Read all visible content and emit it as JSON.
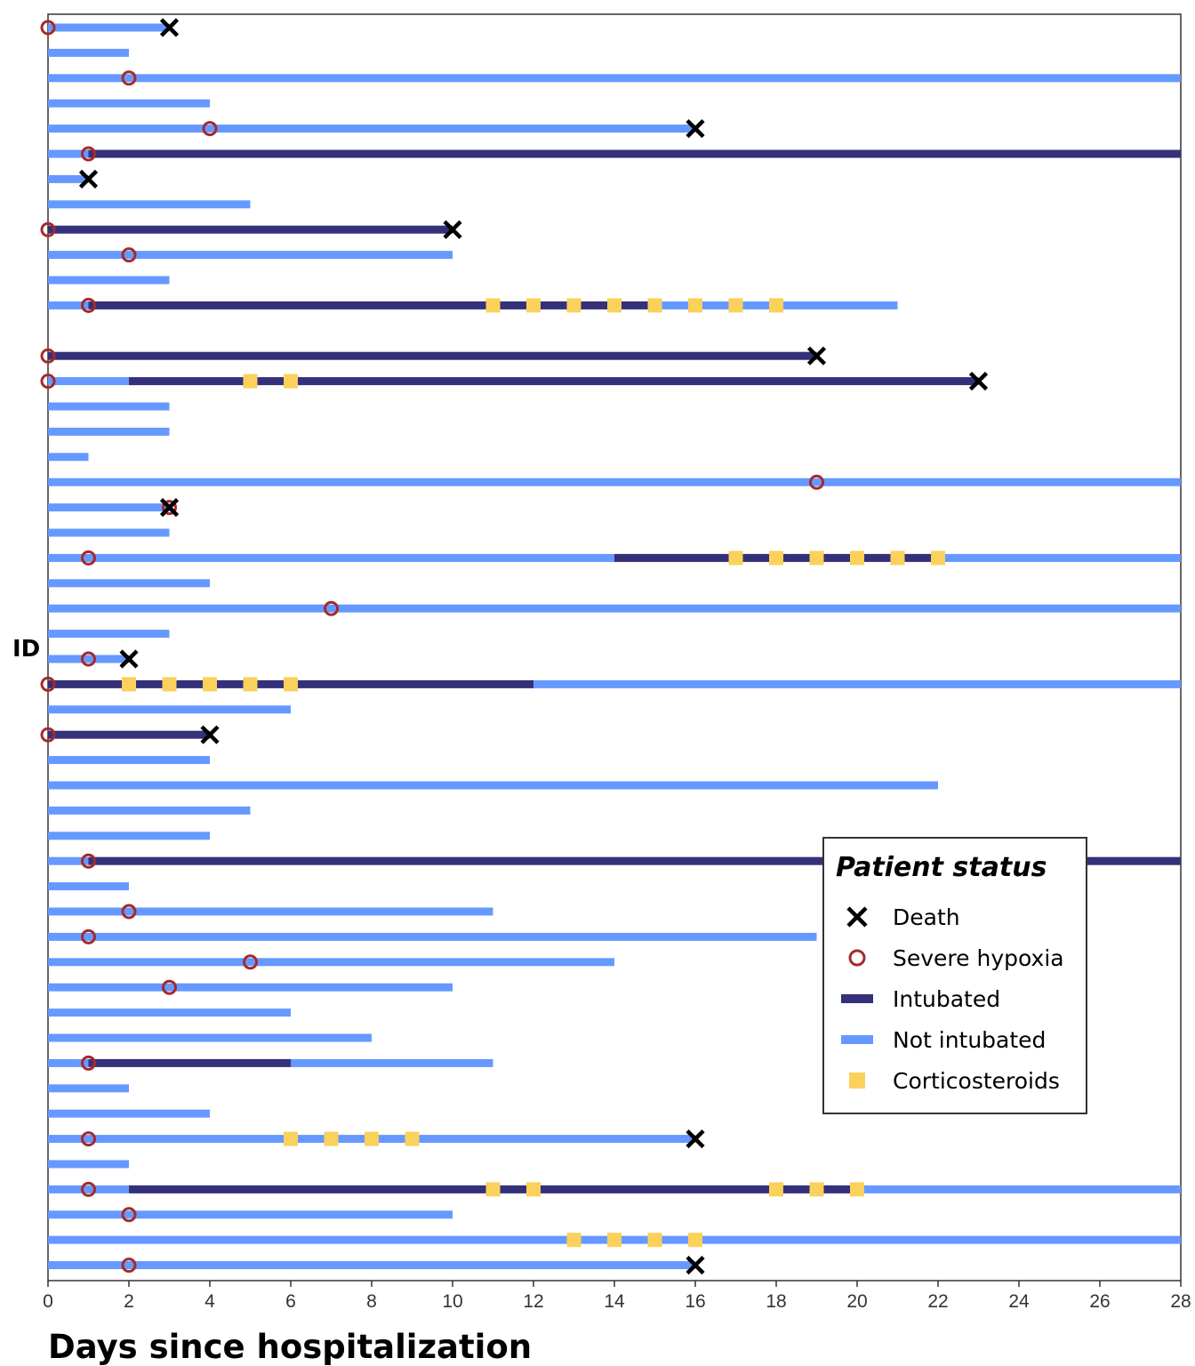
{
  "chart_data": {
    "type": "timeline",
    "xlabel": "Days since hospitalization",
    "ylabel": "ID",
    "xlim": [
      0,
      28
    ],
    "xticks": [
      0,
      2,
      4,
      6,
      8,
      10,
      12,
      14,
      16,
      18,
      20,
      22,
      24,
      26,
      28
    ],
    "grid": false,
    "legend": {
      "title": "Patient status",
      "placement": "lower-right",
      "items": [
        {
          "key": "death",
          "label": "Death"
        },
        {
          "key": "hypoxia",
          "label": "Severe hypoxia"
        },
        {
          "key": "intubated",
          "label": "Intubated"
        },
        {
          "key": "not_intubated",
          "label": "Not intubated"
        },
        {
          "key": "steroid",
          "label": "Corticosteroids"
        }
      ]
    },
    "colors": {
      "intubated": "#34307a",
      "not_intubated": "#6699ff",
      "hypoxia": "#a52a2a",
      "steroid": "#fad15a",
      "death": "#000000"
    },
    "patients": [
      {
        "segments": [
          [
            "not_intubated",
            0,
            3
          ]
        ],
        "hypoxia": 0,
        "death": 3,
        "steroids": []
      },
      {
        "segments": [
          [
            "not_intubated",
            0,
            2
          ]
        ],
        "hypoxia": null,
        "death": null,
        "steroids": []
      },
      {
        "segments": [
          [
            "not_intubated",
            0,
            28
          ]
        ],
        "hypoxia": 2,
        "death": null,
        "steroids": []
      },
      {
        "segments": [
          [
            "not_intubated",
            0,
            4
          ]
        ],
        "hypoxia": null,
        "death": null,
        "steroids": []
      },
      {
        "segments": [
          [
            "not_intubated",
            0,
            16
          ]
        ],
        "hypoxia": 4,
        "death": 16,
        "steroids": []
      },
      {
        "segments": [
          [
            "not_intubated",
            0,
            1
          ],
          [
            "intubated",
            1,
            28
          ]
        ],
        "hypoxia": 1,
        "death": null,
        "steroids": []
      },
      {
        "segments": [
          [
            "not_intubated",
            0,
            1
          ]
        ],
        "hypoxia": null,
        "death": 1,
        "steroids": []
      },
      {
        "segments": [
          [
            "not_intubated",
            0,
            5
          ]
        ],
        "hypoxia": null,
        "death": null,
        "steroids": []
      },
      {
        "segments": [
          [
            "intubated",
            0,
            10
          ]
        ],
        "hypoxia": 0,
        "death": 10,
        "steroids": []
      },
      {
        "segments": [
          [
            "not_intubated",
            0,
            10
          ]
        ],
        "hypoxia": 2,
        "death": null,
        "steroids": []
      },
      {
        "segments": [
          [
            "not_intubated",
            0,
            3
          ]
        ],
        "hypoxia": null,
        "death": null,
        "steroids": []
      },
      {
        "segments": [
          [
            "not_intubated",
            0,
            1
          ],
          [
            "intubated",
            1,
            15
          ],
          [
            "not_intubated",
            15,
            21
          ]
        ],
        "hypoxia": 1,
        "death": null,
        "steroids": [
          11,
          12,
          13,
          14,
          15,
          16,
          17,
          18
        ]
      },
      {
        "segments": [],
        "hypoxia": null,
        "death": null,
        "steroids": []
      },
      {
        "segments": [
          [
            "intubated",
            0,
            19
          ]
        ],
        "hypoxia": 0,
        "death": 19,
        "steroids": []
      },
      {
        "segments": [
          [
            "not_intubated",
            0,
            2
          ],
          [
            "intubated",
            2,
            23
          ]
        ],
        "hypoxia": 0,
        "death": 23,
        "steroids": [
          5,
          6
        ]
      },
      {
        "segments": [
          [
            "not_intubated",
            0,
            3
          ]
        ],
        "hypoxia": null,
        "death": null,
        "steroids": []
      },
      {
        "segments": [
          [
            "not_intubated",
            0,
            3
          ]
        ],
        "hypoxia": null,
        "death": null,
        "steroids": []
      },
      {
        "segments": [
          [
            "not_intubated",
            0,
            1
          ]
        ],
        "hypoxia": null,
        "death": null,
        "steroids": []
      },
      {
        "segments": [
          [
            "not_intubated",
            0,
            28
          ]
        ],
        "hypoxia": 19,
        "death": null,
        "steroids": []
      },
      {
        "segments": [
          [
            "not_intubated",
            0,
            3
          ]
        ],
        "hypoxia": 3,
        "death": 3,
        "steroids": []
      },
      {
        "segments": [
          [
            "not_intubated",
            0,
            3
          ]
        ],
        "hypoxia": null,
        "death": null,
        "steroids": []
      },
      {
        "segments": [
          [
            "not_intubated",
            0,
            14
          ],
          [
            "intubated",
            14,
            22
          ],
          [
            "not_intubated",
            22,
            28
          ]
        ],
        "hypoxia": 1,
        "death": null,
        "steroids": [
          17,
          18,
          19,
          20,
          21,
          22
        ]
      },
      {
        "segments": [
          [
            "not_intubated",
            0,
            4
          ]
        ],
        "hypoxia": null,
        "death": null,
        "steroids": []
      },
      {
        "segments": [
          [
            "not_intubated",
            0,
            28
          ]
        ],
        "hypoxia": 7,
        "death": null,
        "steroids": []
      },
      {
        "segments": [
          [
            "not_intubated",
            0,
            3
          ]
        ],
        "hypoxia": null,
        "death": null,
        "steroids": []
      },
      {
        "segments": [
          [
            "not_intubated",
            0,
            2
          ]
        ],
        "hypoxia": 1,
        "death": 2,
        "steroids": []
      },
      {
        "segments": [
          [
            "intubated",
            0,
            12
          ],
          [
            "not_intubated",
            12,
            28
          ]
        ],
        "hypoxia": 0,
        "death": null,
        "steroids": [
          2,
          3,
          4,
          5,
          6
        ]
      },
      {
        "segments": [
          [
            "not_intubated",
            0,
            6
          ]
        ],
        "hypoxia": null,
        "death": null,
        "steroids": []
      },
      {
        "segments": [
          [
            "intubated",
            0,
            4
          ]
        ],
        "hypoxia": 0,
        "death": 4,
        "steroids": []
      },
      {
        "segments": [
          [
            "not_intubated",
            0,
            4
          ]
        ],
        "hypoxia": null,
        "death": null,
        "steroids": []
      },
      {
        "segments": [
          [
            "not_intubated",
            0,
            22
          ]
        ],
        "hypoxia": null,
        "death": null,
        "steroids": []
      },
      {
        "segments": [
          [
            "not_intubated",
            0,
            5
          ]
        ],
        "hypoxia": null,
        "death": null,
        "steroids": []
      },
      {
        "segments": [
          [
            "not_intubated",
            0,
            4
          ]
        ],
        "hypoxia": null,
        "death": null,
        "steroids": []
      },
      {
        "segments": [
          [
            "not_intubated",
            0,
            1
          ],
          [
            "intubated",
            1,
            28
          ]
        ],
        "hypoxia": 1,
        "death": null,
        "steroids": []
      },
      {
        "segments": [
          [
            "not_intubated",
            0,
            2
          ]
        ],
        "hypoxia": null,
        "death": null,
        "steroids": []
      },
      {
        "segments": [
          [
            "not_intubated",
            0,
            11
          ]
        ],
        "hypoxia": 2,
        "death": null,
        "steroids": []
      },
      {
        "segments": [
          [
            "not_intubated",
            0,
            19
          ]
        ],
        "hypoxia": 1,
        "death": null,
        "steroids": []
      },
      {
        "segments": [
          [
            "not_intubated",
            0,
            14
          ]
        ],
        "hypoxia": 5,
        "death": null,
        "steroids": []
      },
      {
        "segments": [
          [
            "not_intubated",
            0,
            10
          ]
        ],
        "hypoxia": 3,
        "death": null,
        "steroids": []
      },
      {
        "segments": [
          [
            "not_intubated",
            0,
            6
          ]
        ],
        "hypoxia": null,
        "death": null,
        "steroids": []
      },
      {
        "segments": [
          [
            "not_intubated",
            0,
            8
          ]
        ],
        "hypoxia": null,
        "death": null,
        "steroids": []
      },
      {
        "segments": [
          [
            "not_intubated",
            0,
            1
          ],
          [
            "intubated",
            1,
            6
          ],
          [
            "not_intubated",
            6,
            11
          ]
        ],
        "hypoxia": 1,
        "death": null,
        "steroids": []
      },
      {
        "segments": [
          [
            "not_intubated",
            0,
            2
          ]
        ],
        "hypoxia": null,
        "death": null,
        "steroids": []
      },
      {
        "segments": [
          [
            "not_intubated",
            0,
            4
          ]
        ],
        "hypoxia": null,
        "death": null,
        "steroids": []
      },
      {
        "segments": [
          [
            "not_intubated",
            0,
            16
          ]
        ],
        "hypoxia": 1,
        "death": 16,
        "steroids": [
          6,
          7,
          8,
          9
        ]
      },
      {
        "segments": [
          [
            "not_intubated",
            0,
            2
          ]
        ],
        "hypoxia": null,
        "death": null,
        "steroids": []
      },
      {
        "segments": [
          [
            "not_intubated",
            0,
            2
          ],
          [
            "intubated",
            2,
            20
          ],
          [
            "not_intubated",
            20,
            28
          ]
        ],
        "hypoxia": 1,
        "death": null,
        "steroids": [
          11,
          12,
          18,
          19,
          20
        ]
      },
      {
        "segments": [
          [
            "not_intubated",
            0,
            10
          ]
        ],
        "hypoxia": 2,
        "death": null,
        "steroids": []
      },
      {
        "segments": [
          [
            "not_intubated",
            0,
            28
          ]
        ],
        "hypoxia": null,
        "death": null,
        "steroids": [
          13,
          14,
          15,
          16
        ]
      },
      {
        "segments": [
          [
            "not_intubated",
            0,
            16
          ]
        ],
        "hypoxia": 2,
        "death": 16,
        "steroids": []
      }
    ]
  }
}
